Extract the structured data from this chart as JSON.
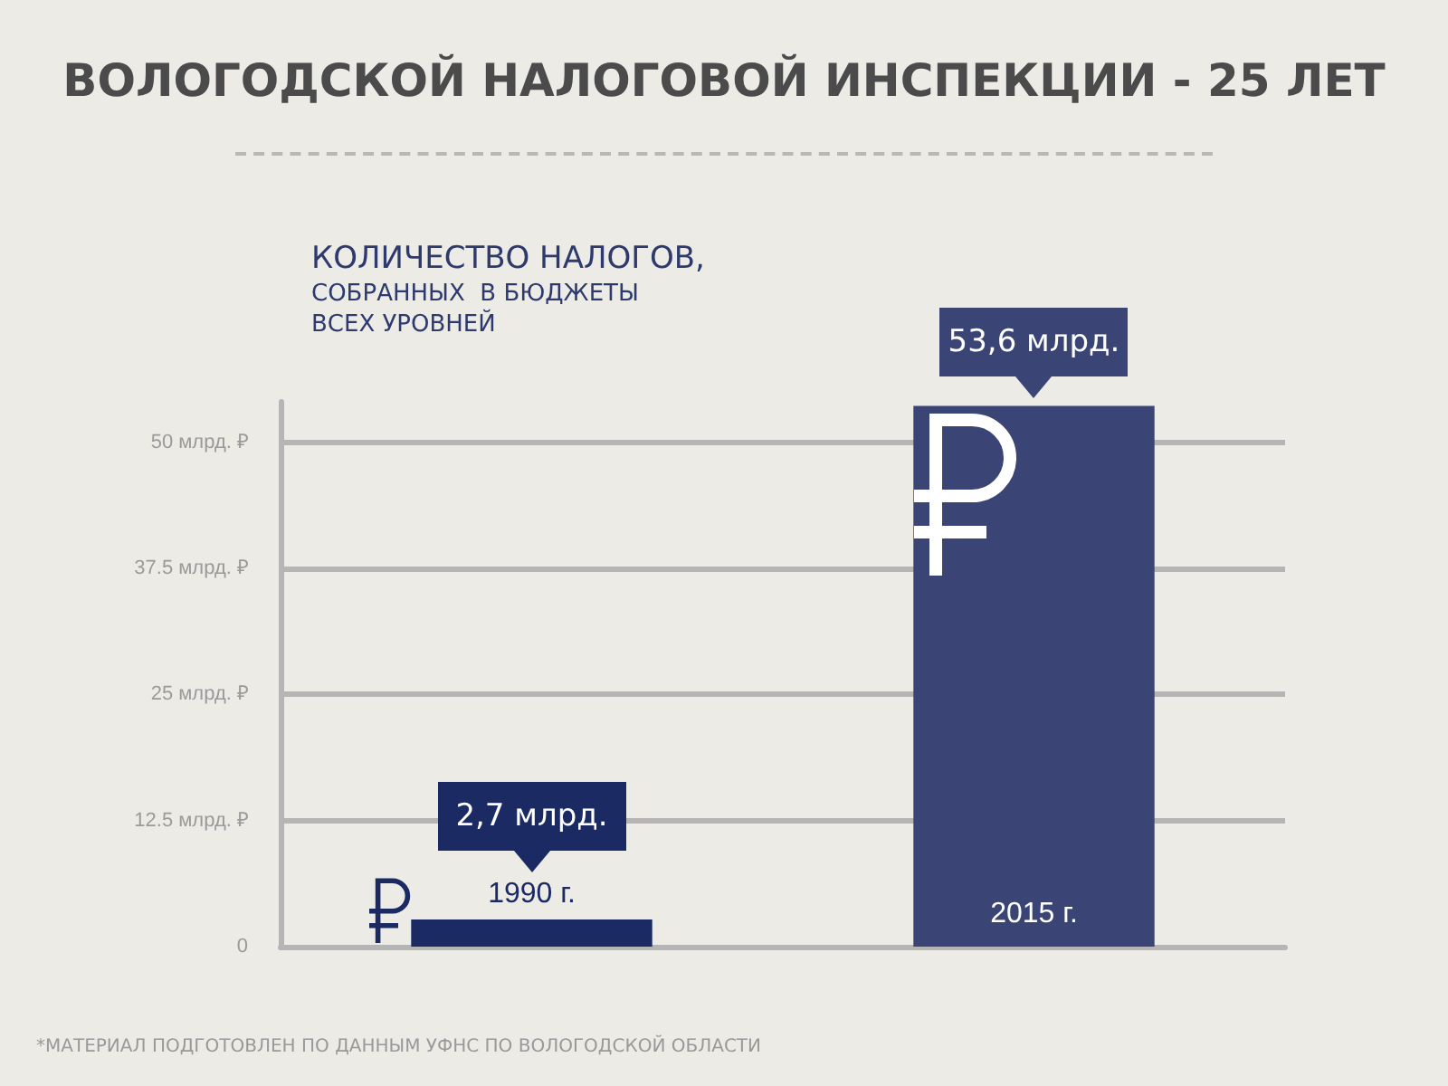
{
  "chart_data": {
    "type": "bar",
    "title": "ВОЛОГОДСКОЙ НАЛОГОВОЙ ИНСПЕКЦИИ - 25 ЛЕТ",
    "subtitle": "КОЛИЧЕСТВО НАЛОГОВ,\nСОБРАННЫХ  В БЮДЖЕТЫ\nВСЕХ УРОВНЕЙ",
    "categories": [
      "1990 г.",
      "2015 г."
    ],
    "values": [
      2.7,
      53.6
    ],
    "colors": [
      "#1b2a63",
      "#3a4575"
    ],
    "value_labels": [
      "2,7 млрд.",
      "53,6 млрд."
    ],
    "ylim": [
      0,
      54
    ],
    "yticks": [
      {
        "value": 0,
        "label": "0"
      },
      {
        "value": 12.5,
        "label": "12.5 млрд. ₽"
      },
      {
        "value": 25,
        "label": "25 млрд. ₽"
      },
      {
        "value": 37.5,
        "label": "37.5 млрд. ₽"
      },
      {
        "value": 50,
        "label": "50 млрд. ₽"
      }
    ],
    "grid": "y",
    "annotations": [
      "*МАТЕРИАЛ ПОДГОТОВЛЕН ПО ДАННЫМ УФНС ПО ВОЛОГОДСКОЙ ОБЛАСТИ"
    ]
  }
}
